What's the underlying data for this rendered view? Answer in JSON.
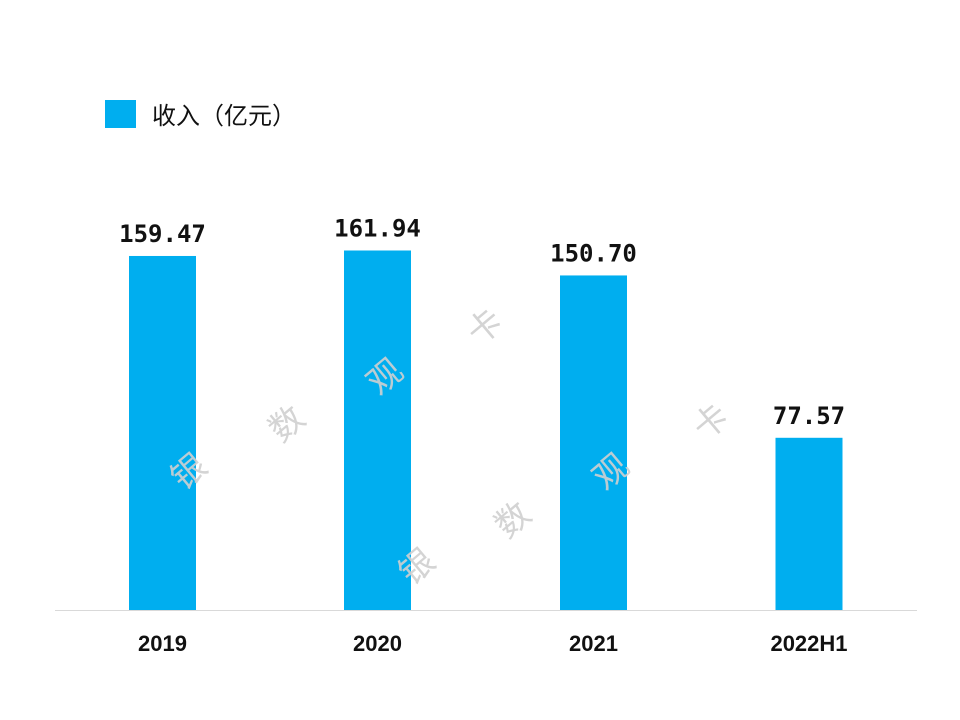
{
  "chart_data": {
    "type": "bar",
    "categories": [
      "2019",
      "2020",
      "2021",
      "2022H1"
    ],
    "series": [
      {
        "name": "收入（亿元）",
        "values": [
          159.47,
          161.94,
          150.7,
          77.57
        ]
      }
    ],
    "data_labels": [
      "159.47",
      "161.94",
      "150.70",
      "77.57"
    ],
    "ylim": [
      0,
      180
    ],
    "grid": false,
    "legend_position": "top-left",
    "colors": {
      "bar": "#00AEEF",
      "baseline": "#d9d9d9"
    }
  },
  "watermark": {
    "chars": [
      "银",
      "数",
      "观",
      "卡"
    ]
  }
}
